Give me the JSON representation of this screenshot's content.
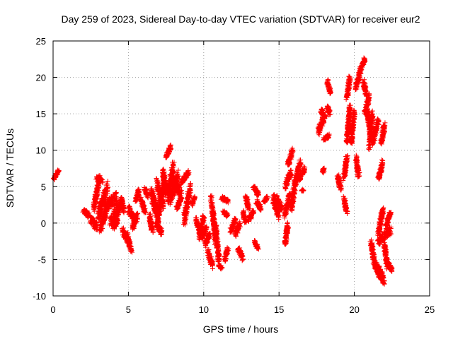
{
  "chart_data": {
    "type": "scatter",
    "title": "Day 259 of 2023, Sidereal Day-to-day VTEC variation (SDTVAR) for receiver eur2",
    "xlabel": "GPS time / hours",
    "ylabel": "SDTVAR / TECUs",
    "xlim": [
      0,
      25
    ],
    "ylim": [
      -10,
      25
    ],
    "xticks": [
      0,
      5,
      10,
      15,
      20,
      25
    ],
    "yticks": [
      -10,
      -5,
      0,
      5,
      10,
      15,
      20,
      25
    ],
    "grid": true,
    "marker": "+",
    "color": "#ff0000",
    "series": [
      {
        "name": "SDTVAR",
        "segments": [
          [
            0.05,
            6.0,
            0.35,
            7.2,
            0.2
          ],
          [
            2.0,
            1.8,
            2.4,
            1.0,
            0.6
          ],
          [
            2.5,
            0.5,
            2.9,
            -0.5,
            1.0
          ],
          [
            2.7,
            2.0,
            3.1,
            6.3,
            0.8
          ],
          [
            2.9,
            6.2,
            3.3,
            5.8,
            0.5
          ],
          [
            3.0,
            1.0,
            3.6,
            5.0,
            1.8
          ],
          [
            3.1,
            -1.0,
            3.5,
            1.5,
            1.2
          ],
          [
            3.4,
            2.0,
            4.2,
            3.5,
            1.5
          ],
          [
            3.8,
            0.0,
            4.6,
            3.0,
            1.5
          ],
          [
            4.0,
            -0.5,
            4.3,
            0.5,
            0.8
          ],
          [
            4.5,
            3.5,
            4.7,
            1.5,
            0.5
          ],
          [
            4.6,
            -1.0,
            5.0,
            -2.5,
            0.8
          ],
          [
            4.9,
            -1.5,
            5.2,
            -3.8,
            0.6
          ],
          [
            5.0,
            2.0,
            5.4,
            0.5,
            1.0
          ],
          [
            5.3,
            -0.5,
            5.6,
            1.0,
            0.8
          ],
          [
            5.5,
            3.0,
            5.7,
            4.5,
            0.4
          ],
          [
            5.8,
            3.5,
            6.1,
            1.5,
            0.5
          ],
          [
            6.1,
            4.8,
            6.3,
            3.5,
            0.5
          ],
          [
            6.4,
            1.0,
            6.6,
            -1.0,
            0.8
          ],
          [
            6.5,
            4.5,
            6.9,
            2.0,
            0.8
          ],
          [
            6.6,
            3.5,
            7.0,
            0.5,
            1.8
          ],
          [
            6.8,
            0.0,
            7.2,
            -1.3,
            0.8
          ],
          [
            6.9,
            5.5,
            7.3,
            2.5,
            1.5
          ],
          [
            7.0,
            1.0,
            7.4,
            6.0,
            1.5
          ],
          [
            7.3,
            7.0,
            7.5,
            4.0,
            1.0
          ],
          [
            7.5,
            9.0,
            7.8,
            10.5,
            0.5
          ],
          [
            7.6,
            3.5,
            8.0,
            8.0,
            2.0
          ],
          [
            7.8,
            3.5,
            8.3,
            6.5,
            2.0
          ],
          [
            8.1,
            5.5,
            8.5,
            4.0,
            1.2
          ],
          [
            8.2,
            2.0,
            8.5,
            3.5,
            0.5
          ],
          [
            8.5,
            5.5,
            9.0,
            7.0,
            0.6
          ],
          [
            8.7,
            0.5,
            9.1,
            5.0,
            1.5
          ],
          [
            9.2,
            2.5,
            9.4,
            3.5,
            0.5
          ],
          [
            9.5,
            0.5,
            9.8,
            -1.5,
            0.6
          ],
          [
            9.7,
            -2.0,
            10.0,
            1.0,
            0.6
          ],
          [
            9.9,
            -2.0,
            10.2,
            -0.5,
            0.8
          ],
          [
            10.1,
            -3.0,
            10.4,
            -1.5,
            0.8
          ],
          [
            10.3,
            -4.0,
            10.6,
            -6.0,
            1.0
          ],
          [
            10.5,
            3.5,
            10.8,
            -2.5,
            1.2
          ],
          [
            10.8,
            -0.5,
            11.0,
            -5.0,
            0.8
          ],
          [
            11.0,
            -5.8,
            11.2,
            -6.2,
            0.3
          ],
          [
            11.2,
            3.5,
            11.6,
            3.0,
            0.5
          ],
          [
            11.3,
            1.5,
            11.6,
            1.0,
            0.5
          ],
          [
            11.4,
            -5.0,
            11.6,
            -3.5,
            0.6
          ],
          [
            11.8,
            -1.0,
            12.1,
            0.5,
            0.6
          ],
          [
            12.1,
            -1.5,
            12.4,
            0.0,
            0.8
          ],
          [
            12.3,
            -3.5,
            12.6,
            -5.0,
            0.6
          ],
          [
            12.6,
            1.5,
            12.8,
            0.0,
            0.5
          ],
          [
            12.8,
            3.5,
            13.0,
            2.0,
            0.5
          ],
          [
            13.0,
            0.5,
            13.3,
            1.5,
            0.6
          ],
          [
            13.3,
            5.0,
            13.6,
            4.0,
            0.5
          ],
          [
            13.5,
            3.0,
            13.8,
            2.0,
            0.6
          ],
          [
            13.4,
            -2.5,
            13.6,
            -3.5,
            0.4
          ],
          [
            14.0,
            3.0,
            14.2,
            3.5,
            0.4
          ],
          [
            14.6,
            3.5,
            15.0,
            1.0,
            1.5
          ],
          [
            14.8,
            3.5,
            15.2,
            2.0,
            0.8
          ],
          [
            15.4,
            -3.0,
            15.6,
            0.0,
            0.6
          ],
          [
            15.4,
            1.0,
            15.7,
            4.0,
            0.8
          ],
          [
            15.4,
            5.0,
            15.8,
            7.0,
            1.0
          ],
          [
            15.6,
            8.0,
            15.9,
            10.0,
            0.6
          ],
          [
            15.8,
            2.0,
            16.1,
            6.0,
            1.2
          ],
          [
            16.1,
            5.5,
            16.4,
            8.5,
            0.8
          ],
          [
            16.3,
            6.0,
            16.7,
            7.5,
            0.6
          ],
          [
            16.5,
            4.5,
            16.6,
            4.5,
            0.2
          ],
          [
            17.6,
            12.5,
            18.0,
            14.5,
            1.0
          ],
          [
            17.8,
            15.5,
            18.1,
            14.5,
            0.6
          ],
          [
            18.0,
            11.5,
            18.3,
            12.0,
            0.5
          ],
          [
            17.9,
            7.0,
            18.0,
            7.5,
            0.3
          ],
          [
            18.2,
            16.0,
            18.4,
            15.0,
            0.6
          ],
          [
            18.2,
            19.5,
            18.4,
            18.0,
            0.6
          ],
          [
            18.9,
            6.5,
            19.1,
            4.5,
            0.6
          ],
          [
            19.3,
            3.5,
            19.5,
            1.5,
            0.8
          ],
          [
            19.3,
            6.0,
            19.5,
            9.0,
            0.6
          ],
          [
            19.5,
            11.0,
            19.7,
            16.0,
            0.6
          ],
          [
            19.5,
            17.0,
            19.7,
            20.0,
            0.4
          ],
          [
            19.6,
            12.5,
            19.8,
            13.5,
            0.5
          ],
          [
            19.8,
            11.0,
            20.0,
            15.5,
            0.6
          ],
          [
            20.1,
            9.0,
            20.3,
            6.5,
            0.8
          ],
          [
            20.1,
            18.5,
            20.4,
            21.0,
            0.8
          ],
          [
            20.4,
            21.0,
            20.7,
            22.5,
            0.6
          ],
          [
            20.6,
            19.5,
            20.8,
            17.5,
            0.5
          ],
          [
            20.7,
            15.0,
            21.0,
            17.5,
            0.8
          ],
          [
            20.8,
            16.0,
            21.1,
            12.0,
            1.0
          ],
          [
            21.0,
            10.5,
            21.2,
            15.0,
            0.8
          ],
          [
            21.2,
            11.0,
            21.6,
            14.0,
            1.0
          ],
          [
            21.1,
            -2.5,
            21.3,
            -5.0,
            0.6
          ],
          [
            21.3,
            -5.5,
            21.8,
            -7.5,
            1.0
          ],
          [
            21.5,
            -6.0,
            22.0,
            -8.0,
            1.2
          ],
          [
            21.6,
            -1.5,
            21.9,
            2.0,
            0.8
          ],
          [
            21.6,
            6.0,
            21.9,
            8.5,
            0.6
          ],
          [
            21.8,
            11.0,
            22.0,
            13.5,
            0.6
          ],
          [
            22.0,
            -3.0,
            22.2,
            -6.0,
            0.8
          ],
          [
            22.2,
            -5.5,
            22.5,
            -6.5,
            0.6
          ],
          [
            22.1,
            -0.5,
            22.4,
            1.5,
            0.6
          ],
          [
            21.6,
            -2.5,
            22.4,
            -1.0,
            1.0
          ]
        ]
      }
    ]
  }
}
